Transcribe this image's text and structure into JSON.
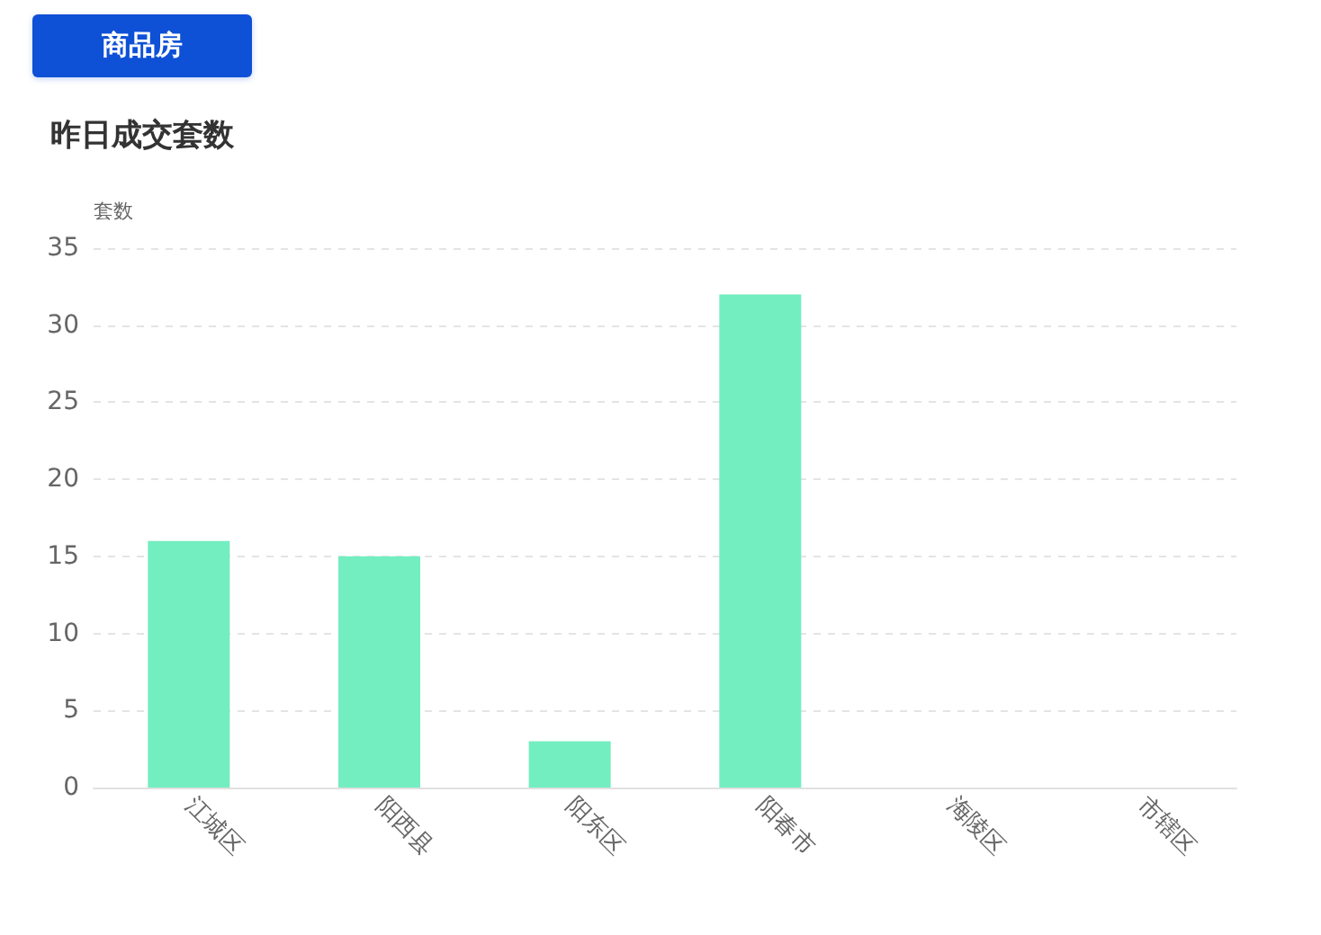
{
  "chart_data": {
    "type": "bar",
    "title": "昨日成交套数",
    "ylabel": "套数",
    "annotations": [
      "商品房"
    ],
    "categories": [
      "江城区",
      "阳西县",
      "阳东区",
      "阳春市",
      "海陵区",
      "市辖区"
    ],
    "values": [
      16,
      15,
      3,
      32,
      0,
      0
    ],
    "color": "#73eec0",
    "ylim": [
      0,
      35
    ],
    "yticks": [
      0,
      5,
      10,
      15,
      20,
      25,
      30,
      35
    ],
    "grid": "y"
  }
}
